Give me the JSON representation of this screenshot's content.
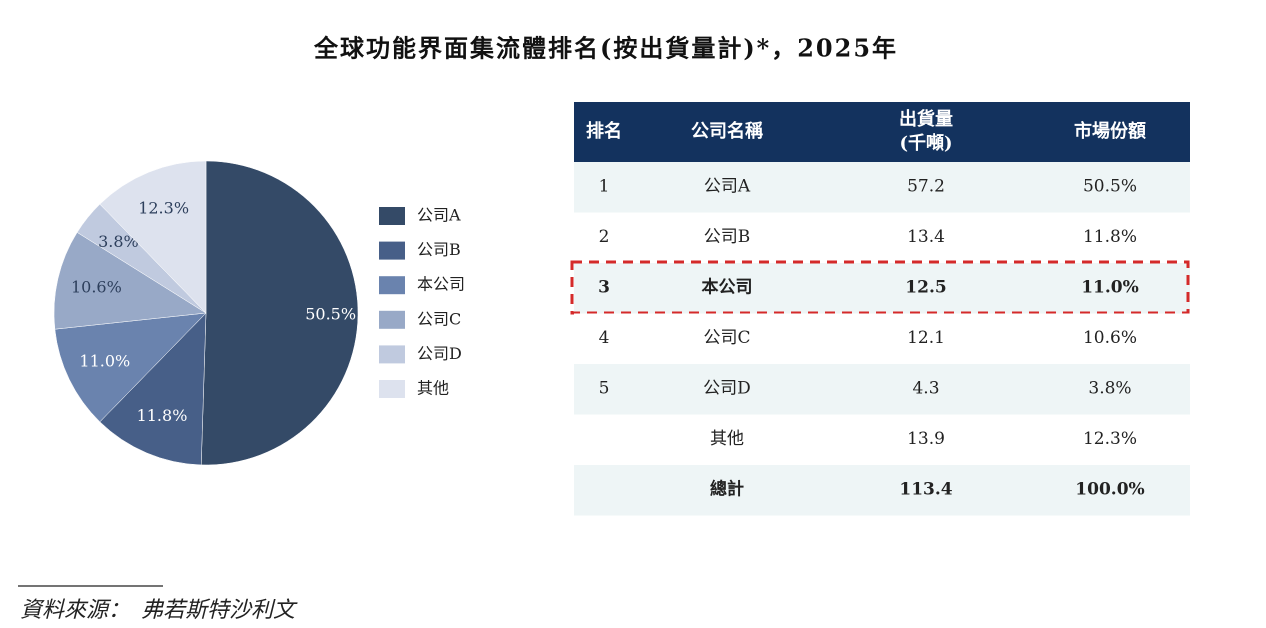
{
  "title": "全球功能界面集流體排名(按出貨量計)*，2025年",
  "chart_data": {
    "type": "pie",
    "categories": [
      "公司A",
      "公司B",
      "本公司",
      "公司C",
      "公司D",
      "其他"
    ],
    "values": [
      50.5,
      11.8,
      11.0,
      10.6,
      3.8,
      12.3
    ],
    "value_labels": [
      "50.5%",
      "11.8%",
      "11.0%",
      "10.6%",
      "3.8%",
      "12.3%"
    ],
    "colors": [
      "#344a67",
      "#475f88",
      "#6a83ae",
      "#98a9c7",
      "#c0cadf",
      "#dde2ee"
    ]
  },
  "table": {
    "header": [
      "排名",
      "公司名稱",
      [
        "出貨量",
        "(千噸)"
      ],
      "市場份額"
    ],
    "rows": [
      [
        "1",
        "公司A",
        "57.2",
        "50.5%"
      ],
      [
        "2",
        "公司B",
        "13.4",
        "11.8%"
      ],
      [
        "3",
        "本公司",
        "12.5",
        "11.0%"
      ],
      [
        "4",
        "公司C",
        "12.1",
        "10.6%"
      ],
      [
        "5",
        "公司D",
        "4.3",
        "3.8%"
      ],
      [
        null,
        "其他",
        "13.9",
        "12.3%"
      ],
      [
        null,
        "總計",
        "113.4",
        "100.0%"
      ]
    ],
    "bold_rows": [
      2,
      6
    ],
    "highlight_row": 2
  },
  "source": "資料來源：　弗若斯特沙利文"
}
